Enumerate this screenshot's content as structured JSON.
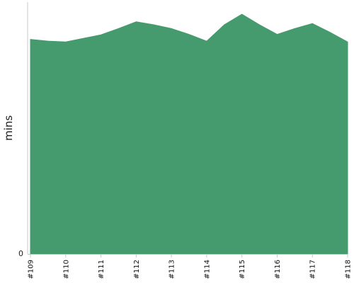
{
  "chart_data": {
    "type": "area",
    "title": "",
    "xlabel": "",
    "ylabel": "mins",
    "grid": false,
    "legend": "none",
    "color": "#459b6e",
    "ylim": [
      0,
      100
    ],
    "y_ticks": [
      "0"
    ],
    "categories": [
      "#109",
      "#110",
      "#111",
      "#112",
      "#113",
      "#114",
      "#115",
      "#116",
      "#117",
      "#118"
    ],
    "x": [
      0,
      0.5,
      1,
      1.5,
      2,
      2.5,
      3,
      3.5,
      4,
      4.5,
      5,
      5.5,
      6,
      6.5,
      7,
      7.5,
      8,
      8.5,
      9
    ],
    "series": [
      {
        "values": [
          85.2,
          84.5,
          84.2,
          85.6,
          87.0,
          89.5,
          92.2,
          91.0,
          89.5,
          87.2,
          84.5,
          91.0,
          95.2,
          91.0,
          87.2,
          89.5,
          91.5,
          88.0,
          84.2
        ]
      }
    ]
  }
}
